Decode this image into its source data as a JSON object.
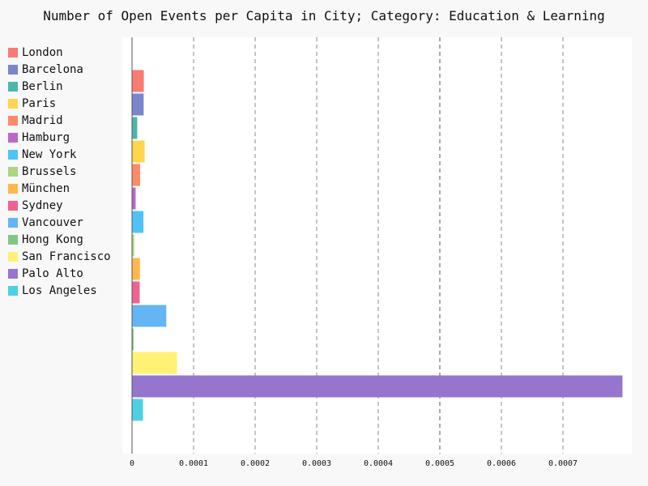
{
  "chart_data": {
    "type": "bar",
    "orientation": "horizontal",
    "title": "Number of Open Events per Capita in City; Category: Education & Learning",
    "xlabel": "",
    "ylabel": "",
    "xlim": [
      0,
      0.000807
    ],
    "x_ticks": [
      "0",
      "0.0001",
      "0.0002",
      "0.0003",
      "0.0004",
      "0.0005",
      "0.0006",
      "0.0007"
    ],
    "grid": "vertical dashed",
    "legend_position": "left",
    "series": [
      {
        "name": "London",
        "value": 1.85e-05,
        "color": "#f77b72"
      },
      {
        "name": "Barcelona",
        "value": 1.82e-05,
        "color": "#7986cb"
      },
      {
        "name": "Berlin",
        "value": 7.8e-06,
        "color": "#4db6ac"
      },
      {
        "name": "Paris",
        "value": 1.98e-05,
        "color": "#ffd54f"
      },
      {
        "name": "Madrid",
        "value": 1.25e-05,
        "color": "#ff8a65"
      },
      {
        "name": "Hamburg",
        "value": 5.2e-06,
        "color": "#ba68c8"
      },
      {
        "name": "New York",
        "value": 1.78e-05,
        "color": "#4fc3f7"
      },
      {
        "name": "Brussels",
        "value": 2.8e-06,
        "color": "#aed581"
      },
      {
        "name": "München",
        "value": 1.22e-05,
        "color": "#ffb74d"
      },
      {
        "name": "Sydney",
        "value": 1.18e-05,
        "color": "#f06292"
      },
      {
        "name": "Vancouver",
        "value": 5.5e-05,
        "color": "#64b5f6"
      },
      {
        "name": "Hong Kong",
        "value": 1.8e-06,
        "color": "#81c784"
      },
      {
        "name": "San Francisco",
        "value": 7.26e-05,
        "color": "#fff176"
      },
      {
        "name": "Palo Alto",
        "value": 0.000796,
        "color": "#9575cd"
      },
      {
        "name": "Los Angeles",
        "value": 1.72e-05,
        "color": "#4dd0e1"
      }
    ]
  }
}
